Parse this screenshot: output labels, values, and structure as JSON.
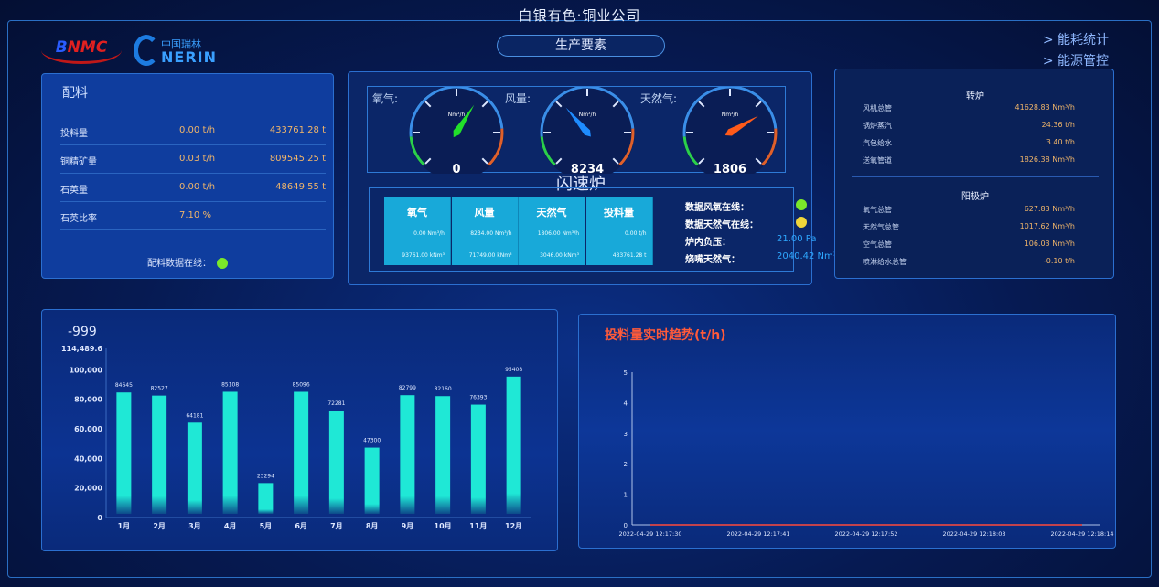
{
  "header": {
    "title": "白银有色·铜业公司",
    "subtitle": "生产要素",
    "nav": [
      "> 能耗统计",
      "> 能源管控"
    ],
    "logos": [
      "BNMC",
      "中国瑞林 NERIN"
    ]
  },
  "batching": {
    "title": "配料",
    "rows": [
      {
        "label": "投料量",
        "rate": "0.00 t/h",
        "total": "433761.28 t"
      },
      {
        "label": "铜精矿量",
        "rate": "0.03 t/h",
        "total": "809545.25 t"
      },
      {
        "label": "石英量",
        "rate": "0.00 t/h",
        "total": "48649.55 t"
      },
      {
        "label": "石英比率",
        "rate": "7.10 %",
        "total": ""
      }
    ],
    "online_label": "配料数据在线：",
    "online_color": "#7be82a"
  },
  "flash_furnace": {
    "title": "闪速炉",
    "gauges": [
      {
        "label": "氧气:",
        "unit": "Nm³/h",
        "value": "0",
        "needle_color": "#22e02a",
        "fraction": 0.62
      },
      {
        "label": "风量:",
        "unit": "Nm³/h",
        "value": "8234",
        "needle_color": "#1e8cff",
        "fraction": 0.35
      },
      {
        "label": "天然气:",
        "unit": "Nm³/h",
        "value": "1806",
        "needle_color": "#ff5a1a",
        "fraction": 0.72
      }
    ],
    "table": [
      {
        "head": "氧气",
        "rate": "0.00 Nm³/h",
        "total": "93761.00 kNm³"
      },
      {
        "head": "风量",
        "rate": "8234.00 Nm³/h",
        "total": "71749.00 kNm³"
      },
      {
        "head": "天然气",
        "rate": "1806.00 Nm³/h",
        "total": "3046.00 kNm³"
      },
      {
        "head": "投料量",
        "rate": "0.00 t/h",
        "total": "433761.28 t"
      }
    ],
    "status": [
      {
        "label": "数据风氧在线：",
        "color": "#7be82a"
      },
      {
        "label": "数据天然气在线：",
        "color": "#f0d63a"
      },
      {
        "label": "炉内负压：",
        "value": "21.00 Pa"
      },
      {
        "label": "烧嘴天然气：",
        "value": "2040.42 Nm³/h"
      }
    ]
  },
  "converter": {
    "title": "转炉",
    "rows": [
      {
        "label": "风机总管",
        "value": "41628.83 Nm³/h"
      },
      {
        "label": "锅炉蒸汽",
        "value": "24.36 t/h"
      },
      {
        "label": "汽包给水",
        "value": "3.40 t/h"
      },
      {
        "label": "送氧管道",
        "value": "1826.38 Nm³/h"
      }
    ]
  },
  "anode": {
    "title": "阳极炉",
    "rows": [
      {
        "label": "氧气总管",
        "value": "627.83 Nm³/h"
      },
      {
        "label": "天然气总管",
        "value": "1017.62 Nm³/h"
      },
      {
        "label": "空气总管",
        "value": "106.03 Nm³/h"
      },
      {
        "label": "喷淋给水总管",
        "value": "-0.10 t/h"
      }
    ]
  },
  "chart_data": [
    {
      "type": "bar",
      "title": "-999",
      "categories": [
        "1月",
        "2月",
        "3月",
        "4月",
        "5月",
        "6月",
        "7月",
        "8月",
        "9月",
        "10月",
        "11月",
        "12月"
      ],
      "values": [
        84645,
        82527,
        64181,
        85108,
        23294,
        85096,
        72281,
        47300,
        82799,
        82160,
        76393,
        95408
      ],
      "ylim": [
        0,
        114489.6
      ],
      "yticks": [
        "0",
        "20,000",
        "40,000",
        "60,000",
        "80,000",
        "100,000",
        "114,489.6"
      ],
      "ytick_values": [
        0,
        20000,
        40000,
        60000,
        80000,
        100000,
        114489.6
      ],
      "color": "#1fe8d6",
      "grid": false
    },
    {
      "type": "line",
      "title": "投料量实时趋势(t/h)",
      "title_color": "#ff5a3a",
      "x": [
        "2022-04-29 12:17:30",
        "2022-04-29 12:17:41",
        "2022-04-29 12:17:52",
        "2022-04-29 12:18:03",
        "2022-04-29 12:18:14"
      ],
      "values": [
        0,
        0,
        0,
        0,
        0
      ],
      "ylim": [
        0,
        5
      ],
      "yticks": [
        "0",
        "1",
        "2",
        "3",
        "4",
        "5"
      ],
      "color": "#ff4a3a",
      "grid": false
    }
  ]
}
